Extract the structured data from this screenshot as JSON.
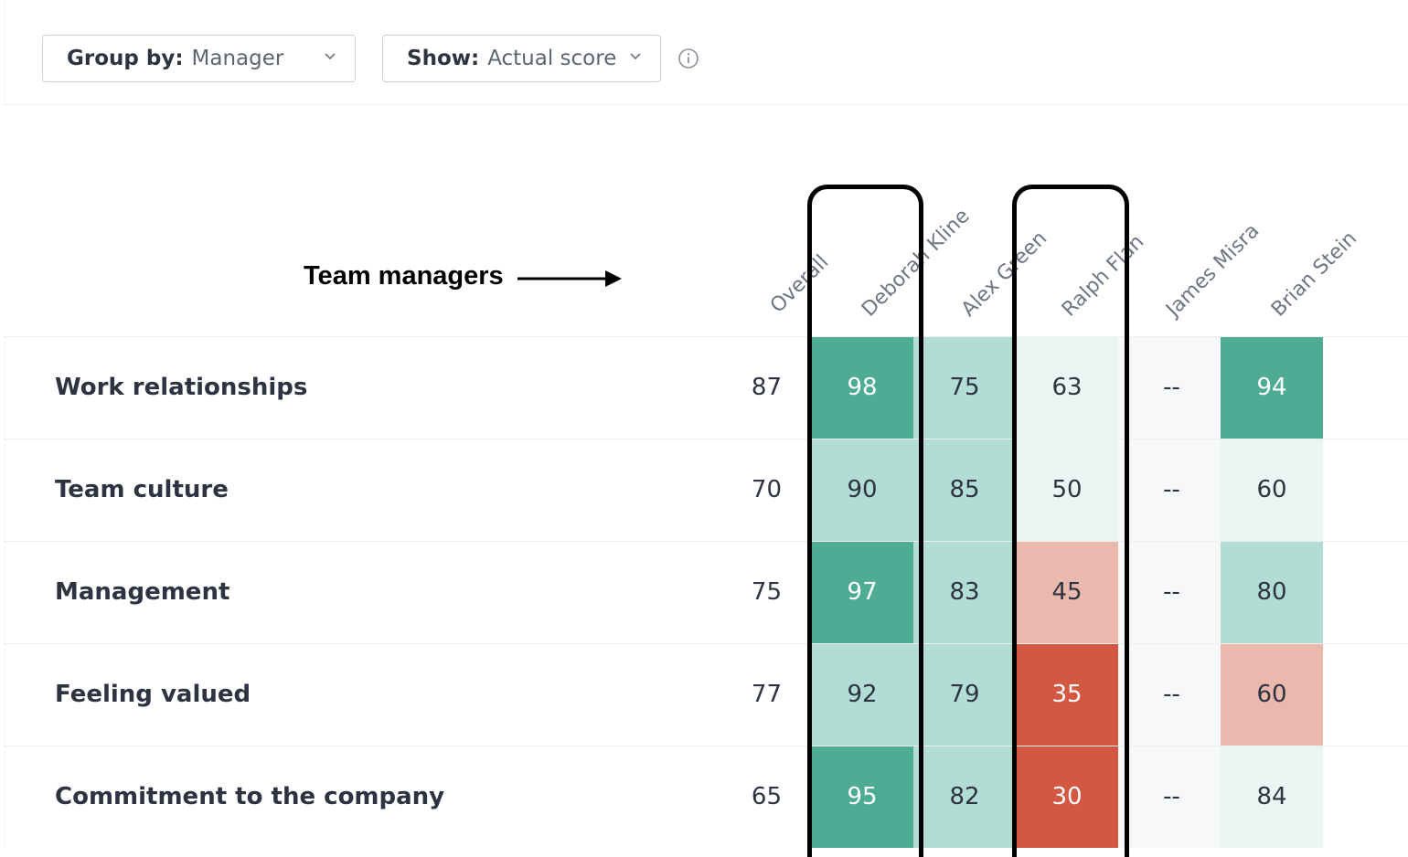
{
  "toolbar": {
    "group_by": {
      "label": "Group by:",
      "value": "Manager"
    },
    "show": {
      "label": "Show:",
      "value": "Actual score"
    }
  },
  "annotation": {
    "text": "Team managers"
  },
  "columns": [
    "Overall",
    "Deborah Kline",
    "Alex Green",
    "Ralph Flan",
    "James Misra",
    "Brian Stein"
  ],
  "rows": [
    {
      "label": "Work relationships",
      "overall": "87",
      "scores": [
        "98",
        "75",
        "63",
        "--",
        "94"
      ]
    },
    {
      "label": "Team culture",
      "overall": "70",
      "scores": [
        "90",
        "85",
        "50",
        "--",
        "60"
      ]
    },
    {
      "label": "Management",
      "overall": "75",
      "scores": [
        "97",
        "83",
        "45",
        "--",
        "80"
      ]
    },
    {
      "label": "Feeling valued",
      "overall": "77",
      "scores": [
        "92",
        "79",
        "35",
        "--",
        "60"
      ]
    },
    {
      "label": "Commitment to the company",
      "overall": "65",
      "scores": [
        "95",
        "82",
        "30",
        "--",
        "84"
      ]
    }
  ],
  "cell_colors": [
    [
      "#4fac94",
      "#b2ddd4",
      "#ebf5f3",
      "#f7f8f9",
      "#4fac94"
    ],
    [
      "#b2ddd4",
      "#b2ddd4",
      "#ebf5f3",
      "#f7f8f9",
      "#ebf5f3"
    ],
    [
      "#4fac94",
      "#b2ddd4",
      "#ebb8ad",
      "#f7f8f9",
      "#b2ddd4"
    ],
    [
      "#b2ddd4",
      "#b2ddd4",
      "#d45841",
      "#f7f8f9",
      "#ebb8ad"
    ],
    [
      "#4fac94",
      "#b2ddd4",
      "#d45841",
      "#f7f8f9",
      "#ebf5f3"
    ]
  ],
  "text_colors": [
    [
      "#ffffff",
      "#2d3340",
      "#2d3340",
      "#2d3340",
      "#ffffff"
    ],
    [
      "#2d3340",
      "#2d3340",
      "#2d3340",
      "#2d3340",
      "#2d3340"
    ],
    [
      "#ffffff",
      "#2d3340",
      "#2d3340",
      "#2d3340",
      "#2d3340"
    ],
    [
      "#2d3340",
      "#2d3340",
      "#ffffff",
      "#2d3340",
      "#2d3340"
    ],
    [
      "#ffffff",
      "#2d3340",
      "#ffffff",
      "#2d3340",
      "#2d3340"
    ]
  ],
  "icons": {
    "dropdown": "chevron-down-icon",
    "info": "info-circle-icon",
    "annotation": "arrow-right-icon"
  },
  "highlighted_columns": [
    "Deborah Kline",
    "Ralph Flan"
  ]
}
